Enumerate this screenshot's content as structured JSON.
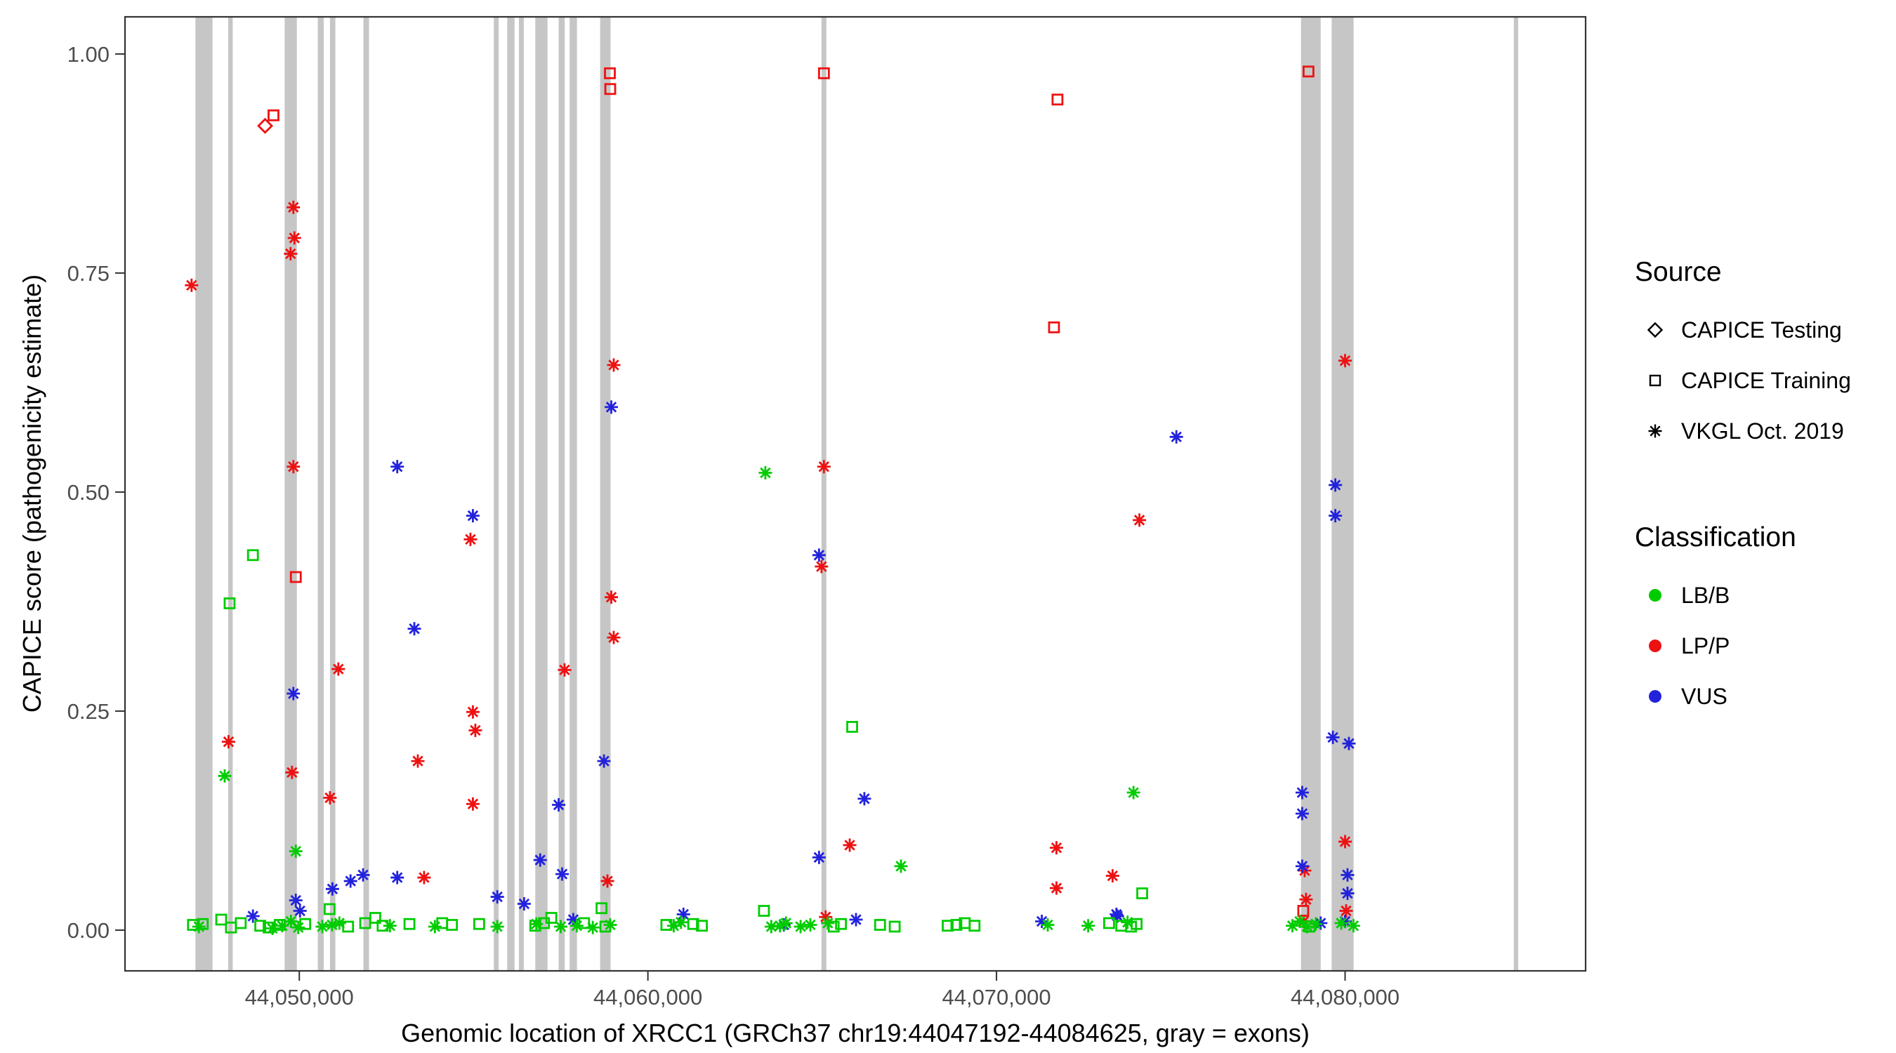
{
  "chart_data": {
    "type": "scatter",
    "title": "",
    "xlabel": "Genomic location of XRCC1 (GRCh37 chr19:44047192-44084625, gray = exons)",
    "ylabel": "CAPICE score (pathogenicity estimate)",
    "xlim": [
      44045000,
      44086900
    ],
    "ylim": [
      -0.0465,
      1.0424
    ],
    "grid": "off",
    "legend_position": "right",
    "x_ticks": [
      {
        "value": 44050000,
        "label": "44,050,000"
      },
      {
        "value": 44060000,
        "label": "44,060,000"
      },
      {
        "value": 44070000,
        "label": "44,070,000"
      },
      {
        "value": 44080000,
        "label": "44,080,000"
      }
    ],
    "y_ticks": [
      {
        "value": 0.0,
        "label": "0.00"
      },
      {
        "value": 0.25,
        "label": "0.25"
      },
      {
        "value": 0.5,
        "label": "0.50"
      },
      {
        "value": 0.75,
        "label": "0.75"
      },
      {
        "value": 1.0,
        "label": "1.00"
      }
    ],
    "colors": {
      "LB/B": "#00cc00",
      "LP/P": "#ee1111",
      "VUS": "#2222dd",
      "exon": "#c6c6c6",
      "panel_border": "#333333",
      "tick_text": "#4d4d4d",
      "legend_glyph": "#000000"
    },
    "legend": {
      "source": {
        "title": "Source",
        "items": [
          {
            "label": "CAPICE Testing",
            "shape": "diamond"
          },
          {
            "label": "CAPICE Training",
            "shape": "square"
          },
          {
            "label": "VKGL Oct. 2019",
            "shape": "asterisk"
          }
        ]
      },
      "classification": {
        "title": "Classification",
        "items": [
          {
            "label": "LB/B",
            "color_key": "LB/B"
          },
          {
            "label": "LP/P",
            "color_key": "LP/P"
          },
          {
            "label": "VUS",
            "color_key": "VUS"
          }
        ]
      }
    },
    "exons": [
      [
        44047020,
        44047510
      ],
      [
        44047960,
        44048090
      ],
      [
        44049580,
        44049930
      ],
      [
        44050530,
        44050700
      ],
      [
        44050880,
        44051035
      ],
      [
        44051840,
        44052000
      ],
      [
        44055580,
        44055720
      ],
      [
        44055965,
        44056175
      ],
      [
        44056300,
        44056440
      ],
      [
        44056770,
        44057120
      ],
      [
        44057440,
        44057615
      ],
      [
        44057755,
        44057965
      ],
      [
        44058630,
        44058930
      ],
      [
        44064980,
        44065120
      ],
      [
        44078735,
        44079300
      ],
      [
        44079615,
        44080245
      ],
      [
        44084840,
        44084965
      ]
    ],
    "points": [
      {
        "x": 44049020,
        "y": 0.918,
        "c": "LP/P",
        "s": "testing"
      },
      {
        "x": 44049260,
        "y": 0.93,
        "c": "LP/P",
        "s": "training"
      },
      {
        "x": 44058910,
        "y": 0.978,
        "c": "LP/P",
        "s": "training"
      },
      {
        "x": 44058920,
        "y": 0.96,
        "c": "LP/P",
        "s": "training"
      },
      {
        "x": 44065050,
        "y": 0.978,
        "c": "LP/P",
        "s": "training"
      },
      {
        "x": 44071750,
        "y": 0.948,
        "c": "LP/P",
        "s": "training"
      },
      {
        "x": 44071650,
        "y": 0.688,
        "c": "LP/P",
        "s": "training"
      },
      {
        "x": 44078950,
        "y": 0.98,
        "c": "LP/P",
        "s": "training"
      },
      {
        "x": 44049900,
        "y": 0.403,
        "c": "LP/P",
        "s": "training"
      },
      {
        "x": 44078800,
        "y": 0.022,
        "c": "LP/P",
        "s": "training"
      },
      {
        "x": 44046910,
        "y": 0.736,
        "c": "LP/P",
        "s": "vkgl"
      },
      {
        "x": 44049830,
        "y": 0.825,
        "c": "LP/P",
        "s": "vkgl"
      },
      {
        "x": 44049860,
        "y": 0.79,
        "c": "LP/P",
        "s": "vkgl"
      },
      {
        "x": 44049750,
        "y": 0.772,
        "c": "LP/P",
        "s": "vkgl"
      },
      {
        "x": 44049830,
        "y": 0.529,
        "c": "LP/P",
        "s": "vkgl"
      },
      {
        "x": 44047970,
        "y": 0.215,
        "c": "LP/P",
        "s": "vkgl"
      },
      {
        "x": 44049790,
        "y": 0.18,
        "c": "LP/P",
        "s": "vkgl"
      },
      {
        "x": 44050880,
        "y": 0.151,
        "c": "LP/P",
        "s": "vkgl"
      },
      {
        "x": 44051120,
        "y": 0.298,
        "c": "LP/P",
        "s": "vkgl"
      },
      {
        "x": 44053400,
        "y": 0.193,
        "c": "LP/P",
        "s": "vkgl"
      },
      {
        "x": 44053580,
        "y": 0.06,
        "c": "LP/P",
        "s": "vkgl"
      },
      {
        "x": 44054910,
        "y": 0.446,
        "c": "LP/P",
        "s": "vkgl"
      },
      {
        "x": 44054980,
        "y": 0.249,
        "c": "LP/P",
        "s": "vkgl"
      },
      {
        "x": 44055050,
        "y": 0.228,
        "c": "LP/P",
        "s": "vkgl"
      },
      {
        "x": 44054980,
        "y": 0.144,
        "c": "LP/P",
        "s": "vkgl"
      },
      {
        "x": 44057610,
        "y": 0.297,
        "c": "LP/P",
        "s": "vkgl"
      },
      {
        "x": 44059020,
        "y": 0.645,
        "c": "LP/P",
        "s": "vkgl"
      },
      {
        "x": 44058950,
        "y": 0.38,
        "c": "LP/P",
        "s": "vkgl"
      },
      {
        "x": 44059020,
        "y": 0.334,
        "c": "LP/P",
        "s": "vkgl"
      },
      {
        "x": 44058840,
        "y": 0.056,
        "c": "LP/P",
        "s": "vkgl"
      },
      {
        "x": 44065050,
        "y": 0.529,
        "c": "LP/P",
        "s": "vkgl"
      },
      {
        "x": 44064980,
        "y": 0.415,
        "c": "LP/P",
        "s": "vkgl"
      },
      {
        "x": 44065790,
        "y": 0.097,
        "c": "LP/P",
        "s": "vkgl"
      },
      {
        "x": 44065100,
        "y": 0.015,
        "c": "LP/P",
        "s": "vkgl"
      },
      {
        "x": 44071720,
        "y": 0.094,
        "c": "LP/P",
        "s": "vkgl"
      },
      {
        "x": 44071720,
        "y": 0.048,
        "c": "LP/P",
        "s": "vkgl"
      },
      {
        "x": 44073330,
        "y": 0.062,
        "c": "LP/P",
        "s": "vkgl"
      },
      {
        "x": 44074100,
        "y": 0.468,
        "c": "LP/P",
        "s": "vkgl"
      },
      {
        "x": 44080000,
        "y": 0.65,
        "c": "LP/P",
        "s": "vkgl"
      },
      {
        "x": 44080000,
        "y": 0.101,
        "c": "LP/P",
        "s": "vkgl"
      },
      {
        "x": 44078840,
        "y": 0.068,
        "c": "LP/P",
        "s": "vkgl"
      },
      {
        "x": 44078880,
        "y": 0.035,
        "c": "LP/P",
        "s": "vkgl"
      },
      {
        "x": 44080030,
        "y": 0.022,
        "c": "LP/P",
        "s": "vkgl"
      },
      {
        "x": 44078810,
        "y": 0.01,
        "c": "LP/P",
        "s": "vkgl"
      },
      {
        "x": 44052810,
        "y": 0.529,
        "c": "VUS",
        "s": "vkgl"
      },
      {
        "x": 44054980,
        "y": 0.473,
        "c": "VUS",
        "s": "vkgl"
      },
      {
        "x": 44053300,
        "y": 0.344,
        "c": "VUS",
        "s": "vkgl"
      },
      {
        "x": 44049830,
        "y": 0.27,
        "c": "VUS",
        "s": "vkgl"
      },
      {
        "x": 44058950,
        "y": 0.597,
        "c": "VUS",
        "s": "vkgl"
      },
      {
        "x": 44058740,
        "y": 0.193,
        "c": "VUS",
        "s": "vkgl"
      },
      {
        "x": 44057440,
        "y": 0.143,
        "c": "VUS",
        "s": "vkgl"
      },
      {
        "x": 44056910,
        "y": 0.08,
        "c": "VUS",
        "s": "vkgl"
      },
      {
        "x": 44057540,
        "y": 0.064,
        "c": "VUS",
        "s": "vkgl"
      },
      {
        "x": 44055680,
        "y": 0.038,
        "c": "VUS",
        "s": "vkgl"
      },
      {
        "x": 44052810,
        "y": 0.06,
        "c": "VUS",
        "s": "vkgl"
      },
      {
        "x": 44051830,
        "y": 0.063,
        "c": "VUS",
        "s": "vkgl"
      },
      {
        "x": 44050950,
        "y": 0.047,
        "c": "VUS",
        "s": "vkgl"
      },
      {
        "x": 44051470,
        "y": 0.056,
        "c": "VUS",
        "s": "vkgl"
      },
      {
        "x": 44048670,
        "y": 0.016,
        "c": "VUS",
        "s": "vkgl"
      },
      {
        "x": 44049900,
        "y": 0.034,
        "c": "VUS",
        "s": "vkgl"
      },
      {
        "x": 44050020,
        "y": 0.022,
        "c": "VUS",
        "s": "vkgl"
      },
      {
        "x": 44064910,
        "y": 0.428,
        "c": "VUS",
        "s": "vkgl"
      },
      {
        "x": 44064910,
        "y": 0.083,
        "c": "VUS",
        "s": "vkgl"
      },
      {
        "x": 44066210,
        "y": 0.15,
        "c": "VUS",
        "s": "vkgl"
      },
      {
        "x": 44075160,
        "y": 0.563,
        "c": "VUS",
        "s": "vkgl"
      },
      {
        "x": 44073470,
        "y": 0.016,
        "c": "VUS",
        "s": "vkgl"
      },
      {
        "x": 44061020,
        "y": 0.018,
        "c": "VUS",
        "s": "vkgl"
      },
      {
        "x": 44065970,
        "y": 0.012,
        "c": "VUS",
        "s": "vkgl"
      },
      {
        "x": 44071300,
        "y": 0.01,
        "c": "VUS",
        "s": "vkgl"
      },
      {
        "x": 44078770,
        "y": 0.157,
        "c": "VUS",
        "s": "vkgl"
      },
      {
        "x": 44078770,
        "y": 0.133,
        "c": "VUS",
        "s": "vkgl"
      },
      {
        "x": 44078770,
        "y": 0.073,
        "c": "VUS",
        "s": "vkgl"
      },
      {
        "x": 44079650,
        "y": 0.22,
        "c": "VUS",
        "s": "vkgl"
      },
      {
        "x": 44080110,
        "y": 0.213,
        "c": "VUS",
        "s": "vkgl"
      },
      {
        "x": 44079720,
        "y": 0.508,
        "c": "VUS",
        "s": "vkgl"
      },
      {
        "x": 44079720,
        "y": 0.473,
        "c": "VUS",
        "s": "vkgl"
      },
      {
        "x": 44080070,
        "y": 0.063,
        "c": "VUS",
        "s": "vkgl"
      },
      {
        "x": 44080070,
        "y": 0.042,
        "c": "VUS",
        "s": "vkgl"
      },
      {
        "x": 44080000,
        "y": 0.01,
        "c": "VUS",
        "s": "vkgl"
      },
      {
        "x": 44079300,
        "y": 0.008,
        "c": "VUS",
        "s": "vkgl"
      },
      {
        "x": 44056450,
        "y": 0.03,
        "c": "VUS",
        "s": "vkgl"
      },
      {
        "x": 44057860,
        "y": 0.012,
        "c": "VUS",
        "s": "vkgl"
      },
      {
        "x": 44063900,
        "y": 0.006,
        "c": "VUS",
        "s": "vkgl"
      },
      {
        "x": 44073440,
        "y": 0.018,
        "c": "VUS",
        "s": "vkgl"
      },
      {
        "x": 44048670,
        "y": 0.428,
        "c": "LB/B",
        "s": "training"
      },
      {
        "x": 44048000,
        "y": 0.373,
        "c": "LB/B",
        "s": "training"
      },
      {
        "x": 44065860,
        "y": 0.232,
        "c": "LB/B",
        "s": "training"
      },
      {
        "x": 44074180,
        "y": 0.042,
        "c": "LB/B",
        "s": "training"
      },
      {
        "x": 44047860,
        "y": 0.176,
        "c": "LB/B",
        "s": "vkgl"
      },
      {
        "x": 44049900,
        "y": 0.09,
        "c": "LB/B",
        "s": "vkgl"
      },
      {
        "x": 44063370,
        "y": 0.522,
        "c": "LB/B",
        "s": "vkgl"
      },
      {
        "x": 44067260,
        "y": 0.073,
        "c": "LB/B",
        "s": "vkgl"
      },
      {
        "x": 44073930,
        "y": 0.157,
        "c": "LB/B",
        "s": "vkgl"
      },
      {
        "x": 44046950,
        "y": 0.006,
        "c": "LB/B",
        "s": "training"
      },
      {
        "x": 44047230,
        "y": 0.007,
        "c": "LB/B",
        "s": "training"
      },
      {
        "x": 44047760,
        "y": 0.012,
        "c": "LB/B",
        "s": "training"
      },
      {
        "x": 44048040,
        "y": 0.003,
        "c": "LB/B",
        "s": "training"
      },
      {
        "x": 44048320,
        "y": 0.008,
        "c": "LB/B",
        "s": "training"
      },
      {
        "x": 44048880,
        "y": 0.005,
        "c": "LB/B",
        "s": "training"
      },
      {
        "x": 44049120,
        "y": 0.003,
        "c": "LB/B",
        "s": "training"
      },
      {
        "x": 44049440,
        "y": 0.006,
        "c": "LB/B",
        "s": "training"
      },
      {
        "x": 44050170,
        "y": 0.007,
        "c": "LB/B",
        "s": "training"
      },
      {
        "x": 44050870,
        "y": 0.024,
        "c": "LB/B",
        "s": "training"
      },
      {
        "x": 44051400,
        "y": 0.004,
        "c": "LB/B",
        "s": "training"
      },
      {
        "x": 44051890,
        "y": 0.008,
        "c": "LB/B",
        "s": "training"
      },
      {
        "x": 44052180,
        "y": 0.014,
        "c": "LB/B",
        "s": "training"
      },
      {
        "x": 44052390,
        "y": 0.005,
        "c": "LB/B",
        "s": "training"
      },
      {
        "x": 44053160,
        "y": 0.007,
        "c": "LB/B",
        "s": "training"
      },
      {
        "x": 44054100,
        "y": 0.008,
        "c": "LB/B",
        "s": "training"
      },
      {
        "x": 44054380,
        "y": 0.006,
        "c": "LB/B",
        "s": "training"
      },
      {
        "x": 44055160,
        "y": 0.007,
        "c": "LB/B",
        "s": "training"
      },
      {
        "x": 44056770,
        "y": 0.005,
        "c": "LB/B",
        "s": "training"
      },
      {
        "x": 44057020,
        "y": 0.008,
        "c": "LB/B",
        "s": "training"
      },
      {
        "x": 44057230,
        "y": 0.014,
        "c": "LB/B",
        "s": "training"
      },
      {
        "x": 44058170,
        "y": 0.008,
        "c": "LB/B",
        "s": "training"
      },
      {
        "x": 44058670,
        "y": 0.025,
        "c": "LB/B",
        "s": "training"
      },
      {
        "x": 44058780,
        "y": 0.004,
        "c": "LB/B",
        "s": "training"
      },
      {
        "x": 44060530,
        "y": 0.006,
        "c": "LB/B",
        "s": "training"
      },
      {
        "x": 44061300,
        "y": 0.007,
        "c": "LB/B",
        "s": "training"
      },
      {
        "x": 44061550,
        "y": 0.005,
        "c": "LB/B",
        "s": "training"
      },
      {
        "x": 44063330,
        "y": 0.022,
        "c": "LB/B",
        "s": "training"
      },
      {
        "x": 44065330,
        "y": 0.004,
        "c": "LB/B",
        "s": "training"
      },
      {
        "x": 44065540,
        "y": 0.007,
        "c": "LB/B",
        "s": "training"
      },
      {
        "x": 44066660,
        "y": 0.006,
        "c": "LB/B",
        "s": "training"
      },
      {
        "x": 44067080,
        "y": 0.004,
        "c": "LB/B",
        "s": "training"
      },
      {
        "x": 44068600,
        "y": 0.005,
        "c": "LB/B",
        "s": "training"
      },
      {
        "x": 44068850,
        "y": 0.006,
        "c": "LB/B",
        "s": "training"
      },
      {
        "x": 44069090,
        "y": 0.008,
        "c": "LB/B",
        "s": "training"
      },
      {
        "x": 44069370,
        "y": 0.005,
        "c": "LB/B",
        "s": "training"
      },
      {
        "x": 44073230,
        "y": 0.008,
        "c": "LB/B",
        "s": "training"
      },
      {
        "x": 44073580,
        "y": 0.005,
        "c": "LB/B",
        "s": "training"
      },
      {
        "x": 44073860,
        "y": 0.004,
        "c": "LB/B",
        "s": "training"
      },
      {
        "x": 44074020,
        "y": 0.007,
        "c": "LB/B",
        "s": "training"
      },
      {
        "x": 44078980,
        "y": 0.004,
        "c": "LB/B",
        "s": "training"
      },
      {
        "x": 44047120,
        "y": 0.004,
        "c": "LB/B",
        "s": "vkgl"
      },
      {
        "x": 44049230,
        "y": 0.002,
        "c": "LB/B",
        "s": "vkgl"
      },
      {
        "x": 44049510,
        "y": 0.005,
        "c": "LB/B",
        "s": "vkgl"
      },
      {
        "x": 44049760,
        "y": 0.01,
        "c": "LB/B",
        "s": "vkgl"
      },
      {
        "x": 44049970,
        "y": 0.003,
        "c": "LB/B",
        "s": "vkgl"
      },
      {
        "x": 44050660,
        "y": 0.004,
        "c": "LB/B",
        "s": "vkgl"
      },
      {
        "x": 44050940,
        "y": 0.006,
        "c": "LB/B",
        "s": "vkgl"
      },
      {
        "x": 44051150,
        "y": 0.008,
        "c": "LB/B",
        "s": "vkgl"
      },
      {
        "x": 44052600,
        "y": 0.005,
        "c": "LB/B",
        "s": "vkgl"
      },
      {
        "x": 44053890,
        "y": 0.004,
        "c": "LB/B",
        "s": "vkgl"
      },
      {
        "x": 44055680,
        "y": 0.004,
        "c": "LB/B",
        "s": "vkgl"
      },
      {
        "x": 44056800,
        "y": 0.007,
        "c": "LB/B",
        "s": "vkgl"
      },
      {
        "x": 44057500,
        "y": 0.004,
        "c": "LB/B",
        "s": "vkgl"
      },
      {
        "x": 44057960,
        "y": 0.005,
        "c": "LB/B",
        "s": "vkgl"
      },
      {
        "x": 44058420,
        "y": 0.003,
        "c": "LB/B",
        "s": "vkgl"
      },
      {
        "x": 44058920,
        "y": 0.006,
        "c": "LB/B",
        "s": "vkgl"
      },
      {
        "x": 44060740,
        "y": 0.005,
        "c": "LB/B",
        "s": "vkgl"
      },
      {
        "x": 44060950,
        "y": 0.009,
        "c": "LB/B",
        "s": "vkgl"
      },
      {
        "x": 44063540,
        "y": 0.004,
        "c": "LB/B",
        "s": "vkgl"
      },
      {
        "x": 44063790,
        "y": 0.005,
        "c": "LB/B",
        "s": "vkgl"
      },
      {
        "x": 44063960,
        "y": 0.008,
        "c": "LB/B",
        "s": "vkgl"
      },
      {
        "x": 44064380,
        "y": 0.004,
        "c": "LB/B",
        "s": "vkgl"
      },
      {
        "x": 44064660,
        "y": 0.006,
        "c": "LB/B",
        "s": "vkgl"
      },
      {
        "x": 44065160,
        "y": 0.008,
        "c": "LB/B",
        "s": "vkgl"
      },
      {
        "x": 44071470,
        "y": 0.006,
        "c": "LB/B",
        "s": "vkgl"
      },
      {
        "x": 44072630,
        "y": 0.005,
        "c": "LB/B",
        "s": "vkgl"
      },
      {
        "x": 44073760,
        "y": 0.009,
        "c": "LB/B",
        "s": "vkgl"
      },
      {
        "x": 44078490,
        "y": 0.005,
        "c": "LB/B",
        "s": "vkgl"
      },
      {
        "x": 44078700,
        "y": 0.01,
        "c": "LB/B",
        "s": "vkgl"
      },
      {
        "x": 44078910,
        "y": 0.004,
        "c": "LB/B",
        "s": "vkgl"
      },
      {
        "x": 44079160,
        "y": 0.007,
        "c": "LB/B",
        "s": "vkgl"
      },
      {
        "x": 44079890,
        "y": 0.008,
        "c": "LB/B",
        "s": "vkgl"
      },
      {
        "x": 44080240,
        "y": 0.005,
        "c": "LB/B",
        "s": "vkgl"
      }
    ]
  }
}
